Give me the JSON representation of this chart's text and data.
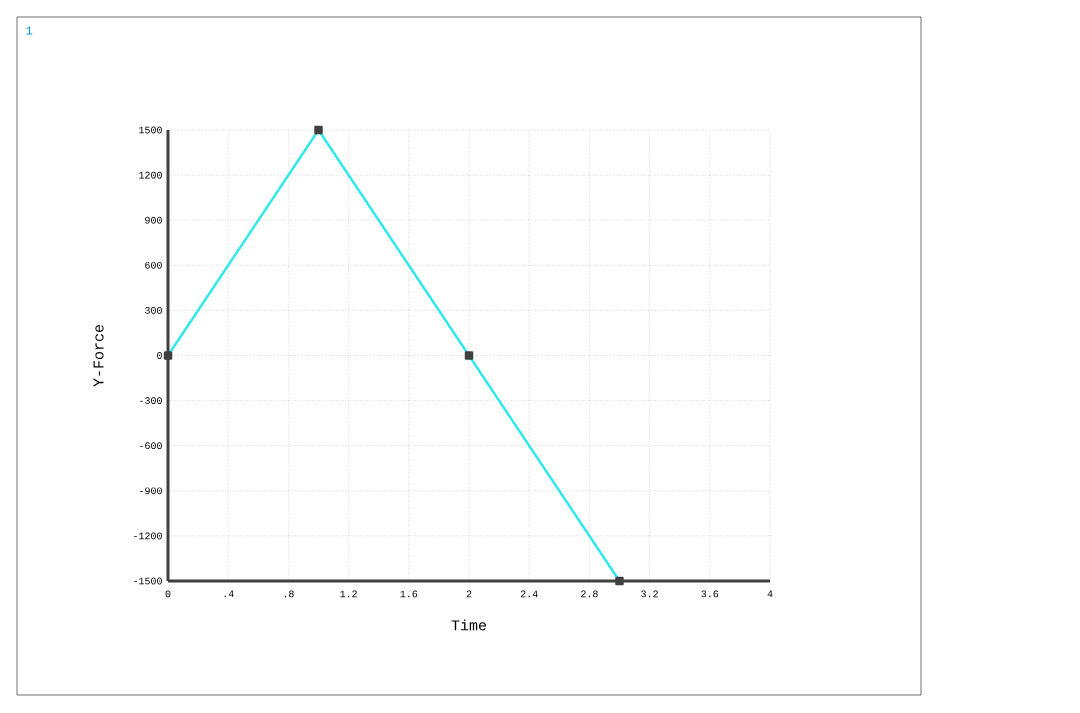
{
  "chart_data": {
    "type": "line",
    "xlabel": "Time",
    "ylabel": "Y-Force",
    "annotations": [
      "1"
    ],
    "x": [
      0,
      1,
      2,
      3
    ],
    "series": [
      {
        "color": "#33e8e8",
        "values": [
          0,
          1500,
          0,
          -1500
        ]
      }
    ],
    "xlim": [
      0,
      4
    ],
    "ylim": [
      -1500,
      1500
    ],
    "xticks": [
      0,
      {
        "value": 0.4,
        "label": ".4"
      },
      {
        "value": 0.8,
        "label": ".8"
      },
      {
        "value": 1.2,
        "label": "1.2"
      },
      {
        "value": 1.6,
        "label": "1.6"
      },
      {
        "value": 2,
        "label": "2"
      },
      {
        "value": 2.4,
        "label": "2.4"
      },
      {
        "value": 2.8,
        "label": "2.8"
      },
      {
        "value": 3.2,
        "label": "3.2"
      },
      {
        "value": 3.6,
        "label": "3.6"
      },
      4
    ],
    "yticks": [
      -1500,
      -1200,
      -900,
      -600,
      -300,
      0,
      300,
      600,
      900,
      1200,
      1500
    ],
    "grid": true,
    "marker": "square",
    "line_style": "solid"
  }
}
